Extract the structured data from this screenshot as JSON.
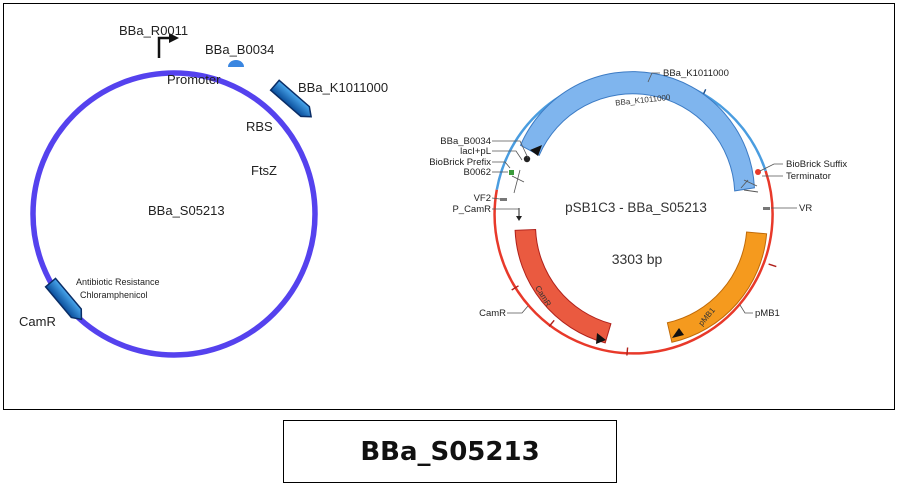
{
  "left_map": {
    "center_label": "BBa_S05213",
    "promoter_id": "BBa_R0011",
    "promoter_label": "Promoter",
    "rbs_id": "BBa_B0034",
    "rbs_label": "RBS",
    "gene_id": "BBa_K1011000",
    "gene_label": "FtsZ",
    "resistance_label_line1": "Antibiotic Resistance",
    "resistance_label_line2": "Chloramphenicol",
    "resistance_gene": "CamR",
    "colors": {
      "backbone": "#5542ee",
      "feature": "#1e78c8"
    }
  },
  "right_map": {
    "title": "pSB1C3 - BBa_S05213",
    "length": "3303 bp",
    "labels": {
      "k1011000": "BBa_K1011000",
      "k1011000_inner": "BBa_K1011000",
      "b0034": "BBa_B0034",
      "lacipl": "lacI+pL",
      "prefix": "BioBrick Prefix",
      "b0062": "B0062",
      "vf2": "VF2",
      "p_camr": "P_CamR",
      "camr": "CamR",
      "camr_inner": "CamR",
      "suffix": "BioBrick Suffix",
      "terminator": "Terminator",
      "vr": "VR",
      "pmb1": "pMB1",
      "pmb1_inner": "pMB1"
    },
    "colors": {
      "insert_ring": "#4a9de0",
      "backbone_ring": "#e8392a",
      "k1011000_feature": "#7fb5ee",
      "camr_feature": "#ea5a40",
      "pmb1_feature": "#f59a1e"
    }
  },
  "caption": "BBa_S05213"
}
